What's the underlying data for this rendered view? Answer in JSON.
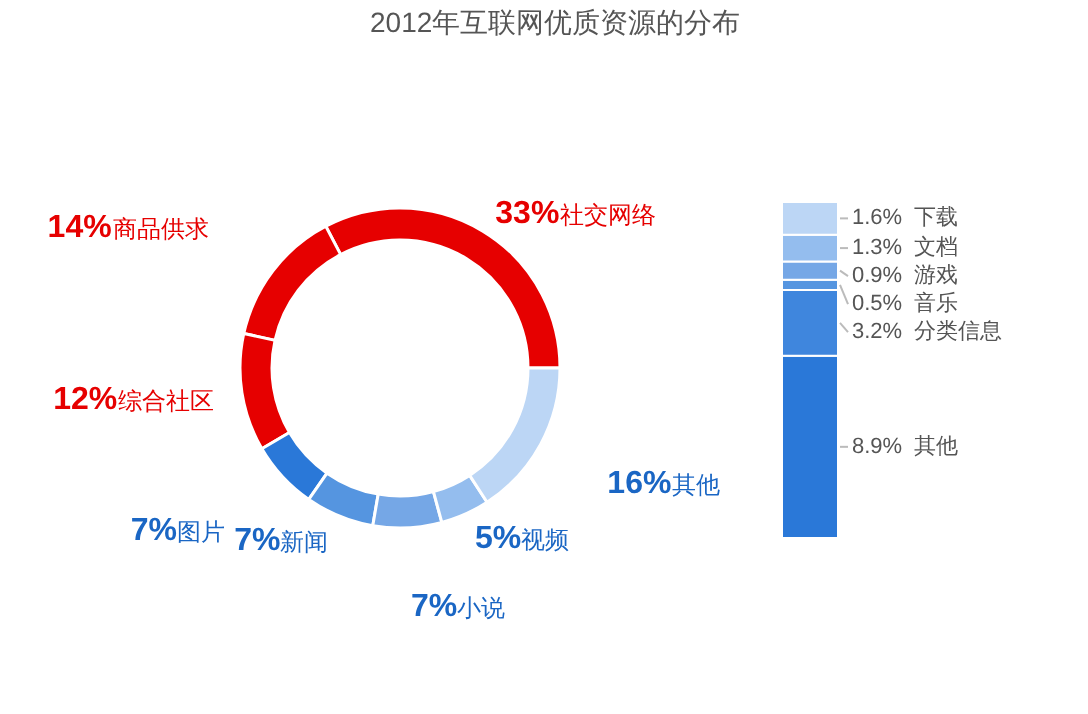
{
  "chart_data": [
    {
      "type": "donut",
      "title": "2012年互联网优质资源的分布",
      "categories": [
        "社交网络",
        "商品供求",
        "综合社区",
        "图片",
        "新闻",
        "小说",
        "视频",
        "其他"
      ],
      "values": [
        33,
        14,
        12,
        7,
        7,
        7,
        5,
        16
      ],
      "value_labels": [
        "33%",
        "14%",
        "12%",
        "7%",
        "7%",
        "7%",
        "5%",
        "16%"
      ],
      "colors": [
        "#e60000",
        "#e60000",
        "#e60000",
        "#2a78d8",
        "#5595e0",
        "#75a7e6",
        "#94bdee",
        "#bcd6f5"
      ]
    },
    {
      "type": "bar",
      "stacked": true,
      "categories": [
        null
      ],
      "series": [
        {
          "name": "其他",
          "color": "#2a78d8",
          "values": [
            8.9
          ],
          "value_labels": [
            "8.9%"
          ]
        },
        {
          "name": "分类信息",
          "color": "#3f86dd",
          "values": [
            3.2
          ],
          "value_labels": [
            "3.2%"
          ]
        },
        {
          "name": "音乐",
          "color": "#5595e0",
          "values": [
            0.5
          ],
          "value_labels": [
            "0.5%"
          ]
        },
        {
          "name": "游戏",
          "color": "#75a7e6",
          "values": [
            0.9
          ],
          "value_labels": [
            "0.9%"
          ]
        },
        {
          "name": "文档",
          "color": "#94bdee",
          "values": [
            1.3
          ],
          "value_labels": [
            "1.3%"
          ]
        },
        {
          "name": "下载",
          "color": "#bcd6f5",
          "values": [
            1.6
          ],
          "value_labels": [
            "1.6%"
          ]
        }
      ]
    }
  ]
}
